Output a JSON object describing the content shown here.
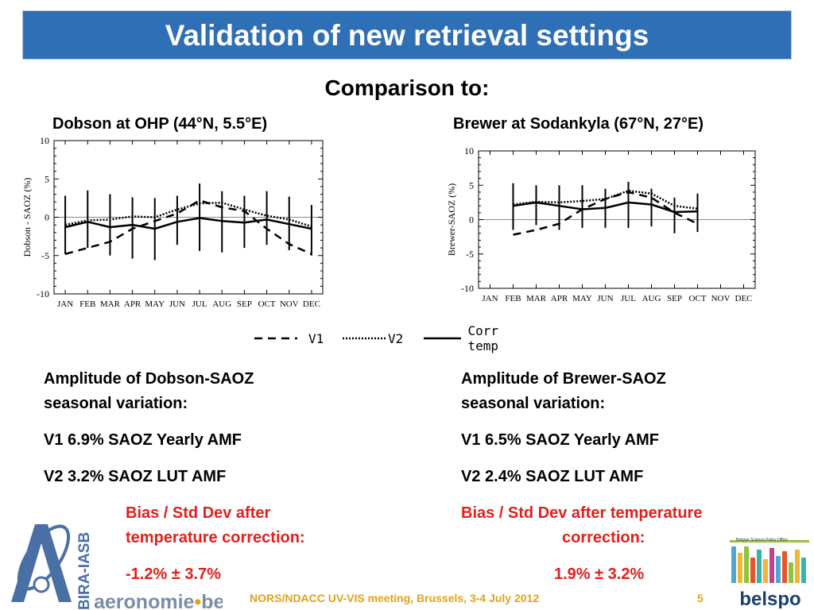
{
  "slide": {
    "title": "Validation of new retrieval settings",
    "subtitle": "Comparison to:",
    "left_chart_title": "Dobson at OHP (44°N, 5.5°E)",
    "right_chart_title": "Brewer at Sodankyla (67°N, 27°E)",
    "legend": {
      "v1": "V1",
      "v2": "V2",
      "corr": "Corr temp"
    },
    "left_text": {
      "heading_line1": "Amplitude of Dobson-SAOZ",
      "heading_line2": "seasonal variation:",
      "v1": "V1  6.9% SAOZ Yearly AMF",
      "v2": "V2  3.2% SAOZ LUT AMF",
      "bias_line1": "Bias / Std Dev after",
      "bias_line2": "temperature correction:",
      "bias_value": "-1.2% ± 3.7%"
    },
    "right_text": {
      "heading_line1": "Amplitude of Brewer-SAOZ",
      "heading_line2": "seasonal variation:",
      "v1": "V1  6.5% SAOZ Yearly AMF",
      "v2": "V2  2.4% SAOZ LUT AMF",
      "bias_line1": "Bias / Std Dev after temperature",
      "bias_line2": "correction:",
      "bias_value": "1.9% ± 3.2%"
    },
    "footer": "NORS/NDACC UV-VIS meeting, Brussels, 3-4 July 2012",
    "page_number": "5",
    "logo_left": {
      "vertical": "BIRA-IASB",
      "domain": "aeronomie",
      "tld": "be"
    },
    "logo_right": {
      "small": "Belgian Science Policy Office",
      "name": "belspo"
    },
    "colors": {
      "title_bar": "#2f6fb5",
      "red_text": "#e1201c",
      "footer_text": "#e0a317",
      "logo_blue": "#4a6fa5"
    }
  },
  "chart_data": [
    {
      "type": "line",
      "ylabel": "Dobson - SAOZ (%)",
      "ylim": [
        -10,
        10
      ],
      "yticks": [
        10,
        5,
        0,
        -5,
        -10
      ],
      "categories": [
        "JAN",
        "FEB",
        "MAR",
        "APR",
        "MAY",
        "JUN",
        "JUL",
        "AUG",
        "SEP",
        "OCT",
        "NOV",
        "DEC"
      ],
      "zero_line": true,
      "series": [
        {
          "name": "V1",
          "style": "dashed",
          "values": [
            -4.8,
            -4.0,
            -3.2,
            -1.5,
            -0.5,
            0.5,
            2.2,
            1.3,
            0.8,
            -1.5,
            -3.5,
            -4.8
          ]
        },
        {
          "name": "V2",
          "style": "dotted",
          "values": [
            -1.0,
            -0.4,
            -0.3,
            0.1,
            0.0,
            1.0,
            1.8,
            1.9,
            1.0,
            0.2,
            -0.3,
            -1.2
          ]
        },
        {
          "name": "Corr temp",
          "style": "solid",
          "values": [
            -1.3,
            -0.6,
            -1.3,
            -1.0,
            -1.5,
            -0.6,
            -0.1,
            -0.5,
            -0.7,
            -0.3,
            -0.9,
            -1.5
          ]
        }
      ],
      "error_bars": {
        "low": [
          -4.8,
          -4.0,
          -5.0,
          -5.4,
          -5.6,
          -3.6,
          -4.4,
          -4.6,
          -4.0,
          -3.6,
          -4.3,
          -5.0
        ],
        "high": [
          2.8,
          3.5,
          3.0,
          2.6,
          2.5,
          2.8,
          4.4,
          3.4,
          2.8,
          3.4,
          2.7,
          1.6
        ]
      }
    },
    {
      "type": "line",
      "ylabel": "Brewer-SAOZ (%)",
      "ylim": [
        -10,
        10
      ],
      "yticks": [
        10,
        5,
        0,
        -5,
        -10
      ],
      "categories": [
        "JAN",
        "FEB",
        "MAR",
        "APR",
        "MAY",
        "JUN",
        "JUL",
        "AUG",
        "SEP",
        "OCT",
        "NOV",
        "DEC"
      ],
      "zero_line": true,
      "series": [
        {
          "name": "V1",
          "style": "dashed",
          "values": [
            null,
            -2.2,
            -1.5,
            -0.6,
            1.5,
            3.0,
            4.0,
            3.2,
            1.0,
            -0.6,
            null,
            null
          ]
        },
        {
          "name": "V2",
          "style": "dotted",
          "values": [
            null,
            2.2,
            2.6,
            2.5,
            2.7,
            3.0,
            4.2,
            3.8,
            2.0,
            1.6,
            null,
            null
          ]
        },
        {
          "name": "Corr temp",
          "style": "solid",
          "values": [
            null,
            2.0,
            2.5,
            2.0,
            1.5,
            1.7,
            2.5,
            2.2,
            1.1,
            1.2,
            null,
            null
          ]
        }
      ],
      "error_bars": {
        "low": [
          null,
          -1.5,
          -0.8,
          -1.5,
          -1.2,
          -1.2,
          -1.2,
          -1.0,
          -2.0,
          -1.8,
          null,
          null
        ],
        "high": [
          null,
          5.3,
          5.0,
          5.0,
          5.0,
          4.5,
          5.5,
          4.5,
          3.2,
          3.8,
          null,
          null
        ]
      }
    }
  ]
}
